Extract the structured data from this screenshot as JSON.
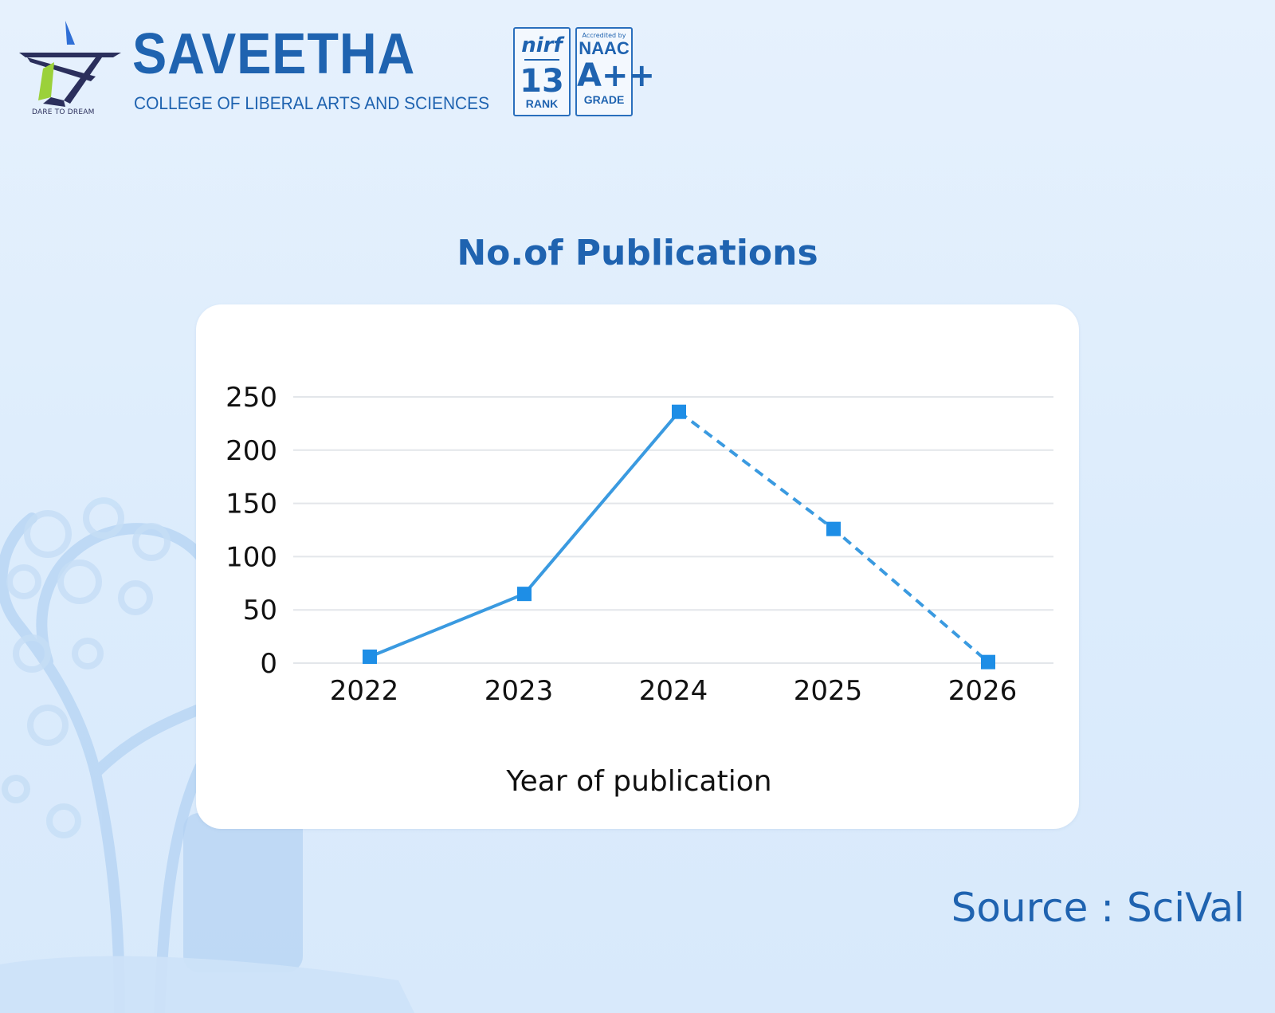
{
  "header": {
    "brand_name": "SAVEETHA",
    "brand_subtitle": "COLLEGE OF LIBERAL ARTS AND SCIENCES",
    "tagline": "DARE TO DREAM",
    "nirf": {
      "title": "nirf",
      "rank": "13",
      "rank_label": "RANK"
    },
    "naac": {
      "accredited": "Accredited by",
      "title": "NAAC",
      "grade": "A++",
      "grade_label": "GRADE"
    }
  },
  "chart_title": "No.of Publications",
  "source": "Source : SciVal",
  "colors": {
    "accent": "#1f63b0",
    "series": "#3a9ae0",
    "marker": "#1e8ee6",
    "grid": "#e3e6ea"
  },
  "chart_data": {
    "type": "line",
    "title": "No.of Publications",
    "xlabel": "Year of publication",
    "ylabel": "",
    "categories": [
      "2022",
      "2023",
      "2024",
      "2025",
      "2026"
    ],
    "values": [
      6,
      65,
      236,
      126,
      1
    ],
    "dashed_from_index": 2,
    "ylim": [
      0,
      250
    ],
    "yticks": [
      0,
      50,
      100,
      150,
      200,
      250
    ],
    "grid": true,
    "legend": "none"
  }
}
